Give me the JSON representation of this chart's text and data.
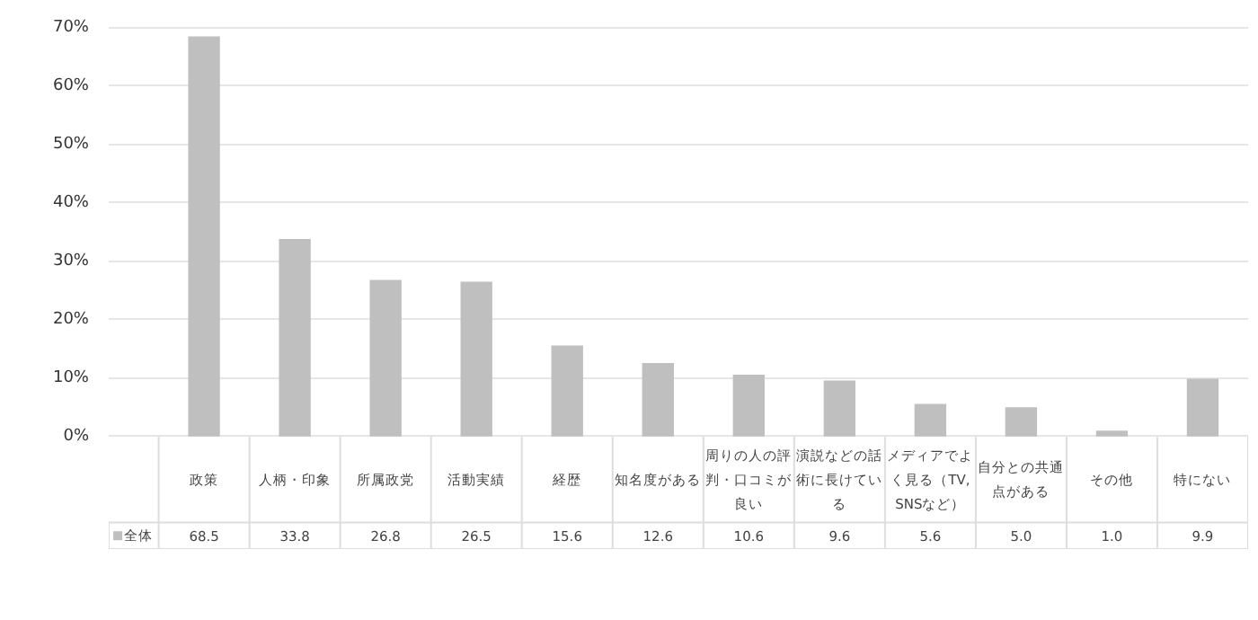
{
  "chart_data": {
    "type": "bar",
    "categories": [
      "政策",
      "人柄・印象",
      "所属政党",
      "活動実績",
      "経歴",
      "知名度がある",
      "周りの人の評判・口コミが良い",
      "演説などの話術に長けている",
      "メディアでよく見る（TV,SNSなど）",
      "自分との共通点がある",
      "その他",
      "特にない"
    ],
    "series": [
      {
        "name": "全体",
        "color": "#bfbfbf",
        "values": [
          68.5,
          33.8,
          26.8,
          26.5,
          15.6,
          12.6,
          10.6,
          9.6,
          5.6,
          5.0,
          1.0,
          9.9
        ],
        "value_labels": [
          "68.5",
          "33.8",
          "26.8",
          "26.5",
          "15.6",
          "12.6",
          "10.6",
          "9.6",
          "5.6",
          "5.0",
          "1.0",
          "9.9"
        ]
      }
    ],
    "ylim": [
      0,
      70
    ],
    "yticks": [
      {
        "value": 0,
        "label": "0%"
      },
      {
        "value": 10,
        "label": "10%"
      },
      {
        "value": 20,
        "label": "20%"
      },
      {
        "value": 30,
        "label": "30%"
      },
      {
        "value": 40,
        "label": "40%"
      },
      {
        "value": 50,
        "label": "50%"
      },
      {
        "value": 60,
        "label": "60%"
      },
      {
        "value": 70,
        "label": "70%"
      }
    ],
    "grid": "y",
    "legend": "bottom"
  }
}
